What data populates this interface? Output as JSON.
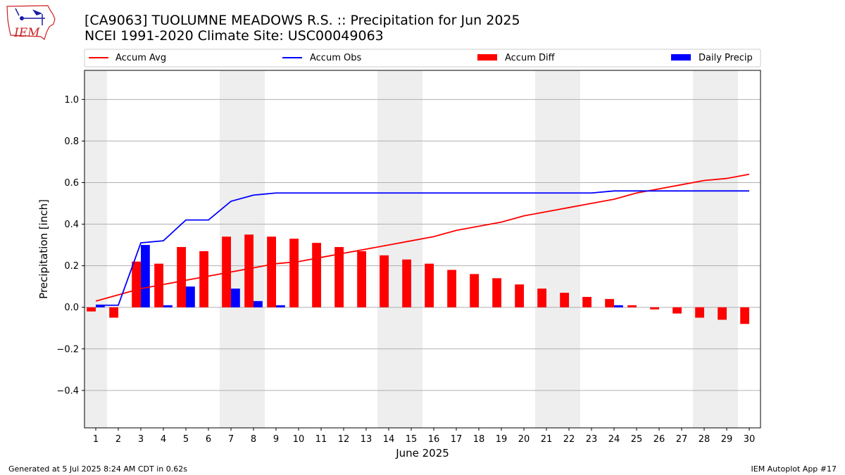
{
  "header": {
    "title_line1": "[CA9063] TUOLUMNE MEADOWS R.S. :: Precipitation for Jun 2025",
    "title_line2": "NCEI 1991-2020 Climate Site: USC00049063",
    "logo_text": "IEM"
  },
  "footer": {
    "left": "Generated at 5 Jul 2025 8:24 AM CDT in 0.62s",
    "right": "IEM Autoplot App #17"
  },
  "colors": {
    "accum_avg": "#ff0000",
    "accum_obs": "#0000ff",
    "accum_diff": "#ff0000",
    "daily_precip": "#0000ff",
    "weekend_shade": "#eeeeee",
    "grid": "#b0b0b0",
    "logo": "#cc2222",
    "logo_icon": "#1a1aa8"
  },
  "chart_data": {
    "type": "bar",
    "xlabel": "June 2025",
    "ylabel": "Precipitation [inch]",
    "ylim": [
      -0.58,
      1.14
    ],
    "yticks": [
      -0.4,
      -0.2,
      0.0,
      0.2,
      0.4,
      0.6,
      0.8,
      1.0
    ],
    "ytick_labels": [
      "−0.4",
      "−0.2",
      "0.0",
      "0.2",
      "0.4",
      "0.6",
      "0.8",
      "1.0"
    ],
    "grid": "horizontal",
    "legend_position": "top",
    "categories": [
      "1",
      "2",
      "3",
      "4",
      "5",
      "6",
      "7",
      "8",
      "9",
      "10",
      "11",
      "12",
      "13",
      "14",
      "15",
      "16",
      "17",
      "18",
      "19",
      "20",
      "21",
      "22",
      "23",
      "24",
      "25",
      "26",
      "27",
      "28",
      "29",
      "30"
    ],
    "weekend_days": [
      1,
      7,
      8,
      14,
      15,
      21,
      22,
      28,
      29
    ],
    "series": [
      {
        "name": "Accum Avg",
        "kind": "line",
        "color": "#ff0000",
        "values": [
          0.03,
          0.06,
          0.09,
          0.11,
          0.13,
          0.15,
          0.17,
          0.19,
          0.21,
          0.22,
          0.24,
          0.26,
          0.28,
          0.3,
          0.32,
          0.34,
          0.37,
          0.39,
          0.41,
          0.44,
          0.46,
          0.48,
          0.5,
          0.52,
          0.55,
          0.57,
          0.59,
          0.61,
          0.62,
          0.64
        ]
      },
      {
        "name": "Accum Obs",
        "kind": "line",
        "color": "#0000ff",
        "values": [
          0.01,
          0.01,
          0.31,
          0.32,
          0.42,
          0.42,
          0.51,
          0.54,
          0.55,
          0.55,
          0.55,
          0.55,
          0.55,
          0.55,
          0.55,
          0.55,
          0.55,
          0.55,
          0.55,
          0.55,
          0.55,
          0.55,
          0.55,
          0.56,
          0.56,
          0.56,
          0.56,
          0.56,
          0.56,
          0.56
        ]
      },
      {
        "name": "Accum Diff",
        "kind": "bar",
        "color": "#ff0000",
        "values": [
          -0.02,
          -0.05,
          0.22,
          0.21,
          0.29,
          0.27,
          0.34,
          0.35,
          0.34,
          0.33,
          0.31,
          0.29,
          0.27,
          0.25,
          0.23,
          0.21,
          0.18,
          0.16,
          0.14,
          0.11,
          0.09,
          0.07,
          0.05,
          0.04,
          0.01,
          -0.01,
          -0.03,
          -0.05,
          -0.06,
          -0.08
        ]
      },
      {
        "name": "Daily Precip",
        "kind": "bar",
        "color": "#0000ff",
        "values": [
          0.01,
          0.0,
          0.3,
          0.01,
          0.1,
          0.0,
          0.09,
          0.03,
          0.01,
          0.0,
          0.0,
          0.0,
          0.0,
          0.0,
          0.0,
          0.0,
          0.0,
          0.0,
          0.0,
          0.0,
          0.0,
          0.0,
          0.0,
          0.01,
          0.0,
          0.0,
          0.0,
          0.0,
          0.0,
          0.0
        ]
      }
    ]
  }
}
